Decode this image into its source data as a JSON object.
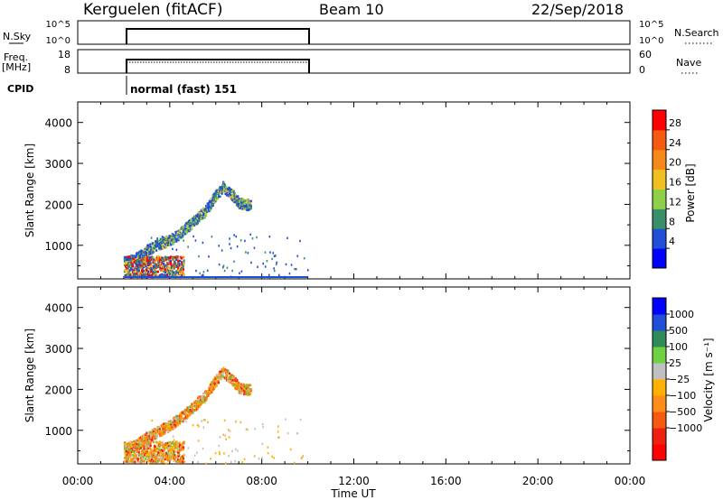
{
  "header": {
    "station": "Kerguelen (fitACF)",
    "beam": "Beam 10",
    "date": "22/Sep/2018"
  },
  "nsky_panel": {
    "left_label": "N.Sky",
    "left_ticks": [
      "10^5",
      "10^0"
    ],
    "right_ticks": [
      "10^5",
      "10^0"
    ],
    "right_label": "N.Search"
  },
  "freq_panel": {
    "left_label_top": "Freq.",
    "left_label_bottom": "[MHz]",
    "left_ticks": [
      "18",
      "8"
    ],
    "right_ticks": [
      "60",
      "0"
    ],
    "right_label": "Nave"
  },
  "cpid": {
    "label": "CPID",
    "mode": "normal (fast) 151"
  },
  "x_axis": {
    "label": "Time UT",
    "ticks": [
      "00:00",
      "04:00",
      "08:00",
      "12:00",
      "16:00",
      "20:00",
      "00:00"
    ]
  },
  "power_colorbar": {
    "label": "Power [dB]",
    "ticks": [
      "28",
      "24",
      "20",
      "16",
      "12",
      "8",
      "4"
    ],
    "colors": [
      "#0000ff",
      "#1f4fd6",
      "#3a8f6a",
      "#8fd04a",
      "#f0c020",
      "#f58a1a",
      "#f55a10",
      "#ff0000"
    ]
  },
  "velocity_colorbar": {
    "label": "Velocity [m s⁻¹]",
    "ticks": [
      "1000",
      "500",
      "100",
      "25",
      "−25",
      "−100",
      "−500",
      "−1000"
    ],
    "colors": [
      "#ff0000",
      "#f02010",
      "#f55a10",
      "#ff8c1a",
      "#ffb000",
      "#c0c0c0",
      "#6fd040",
      "#2e8b57",
      "#1f4fd6",
      "#0000ff"
    ]
  },
  "chart_data": [
    {
      "type": "heatmap",
      "name": "Power",
      "ylabel": "Slant Range [km]",
      "xlabel": "",
      "xlim": [
        0,
        24
      ],
      "ylim": [
        180,
        4500
      ],
      "yticks": [
        1000,
        2000,
        3000,
        4000
      ],
      "xticks_hours": [
        0,
        4,
        8,
        12,
        16,
        20,
        24
      ],
      "scatter_band": [
        {
          "t": 2.0,
          "r": 600
        },
        {
          "t": 2.5,
          "r": 700
        },
        {
          "t": 3.0,
          "r": 900
        },
        {
          "t": 3.5,
          "r": 1050
        },
        {
          "t": 4.0,
          "r": 1150
        },
        {
          "t": 4.5,
          "r": 1350
        },
        {
          "t": 5.0,
          "r": 1600
        },
        {
          "t": 5.5,
          "r": 1850
        },
        {
          "t": 6.0,
          "r": 2250
        },
        {
          "t": 6.3,
          "r": 2450
        },
        {
          "t": 6.7,
          "r": 2250
        },
        {
          "t": 7.0,
          "r": 2050
        },
        {
          "t": 7.5,
          "r": 2000
        }
      ],
      "near_range_power_max_db": 28,
      "data_interval_hours": [
        2.0,
        10.0
      ]
    },
    {
      "type": "heatmap",
      "name": "Velocity",
      "ylabel": "Slant Range [km]",
      "xlabel": "Time UT",
      "xlim": [
        0,
        24
      ],
      "ylim": [
        180,
        4500
      ],
      "yticks": [
        1000,
        2000,
        3000,
        4000
      ],
      "xticks_hours": [
        0,
        4,
        8,
        12,
        16,
        20,
        24
      ],
      "scatter_band": [
        {
          "t": 2.0,
          "r": 550
        },
        {
          "t": 2.5,
          "r": 650
        },
        {
          "t": 3.0,
          "r": 850
        },
        {
          "t": 3.5,
          "r": 1000
        },
        {
          "t": 4.0,
          "r": 1150
        },
        {
          "t": 4.5,
          "r": 1350
        },
        {
          "t": 5.0,
          "r": 1600
        },
        {
          "t": 5.5,
          "r": 1850
        },
        {
          "t": 6.0,
          "r": 2250
        },
        {
          "t": 6.3,
          "r": 2450
        },
        {
          "t": 6.7,
          "r": 2250
        },
        {
          "t": 7.0,
          "r": 2050
        },
        {
          "t": 7.5,
          "r": 2000
        }
      ],
      "dominant_velocity_range": [
        -500,
        -100
      ],
      "data_interval_hours": [
        2.0,
        10.0
      ]
    }
  ]
}
